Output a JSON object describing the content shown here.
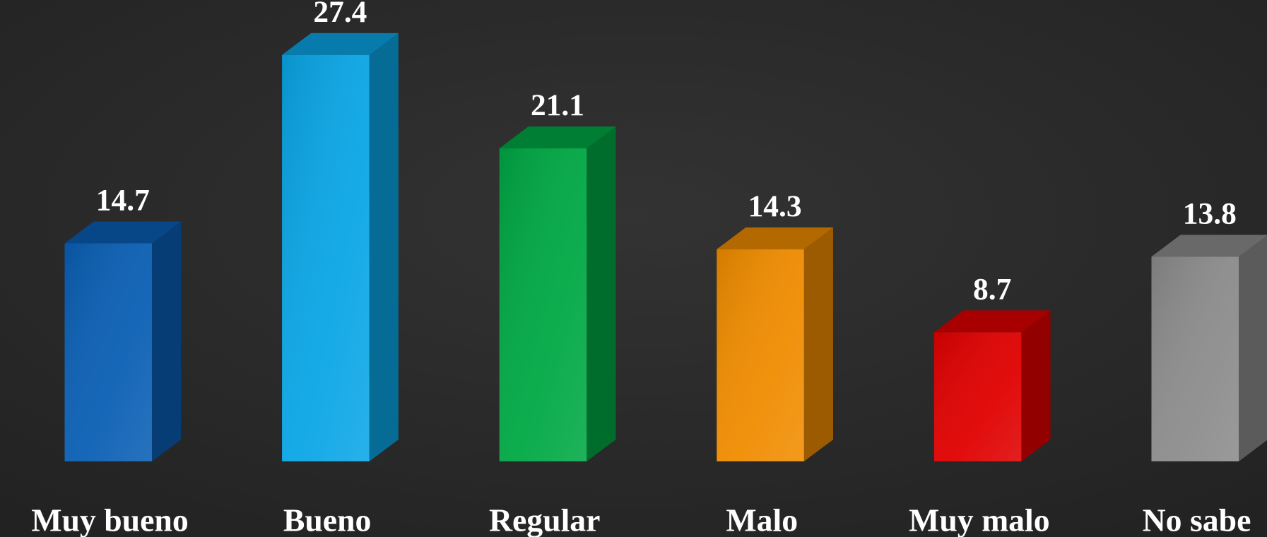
{
  "chart_data": {
    "type": "bar3d",
    "categories": [
      "Muy bueno",
      "Bueno",
      "Regular",
      "Malo",
      "Muy malo",
      "No sabe"
    ],
    "values": [
      14.7,
      27.4,
      21.1,
      14.3,
      8.7,
      13.8
    ],
    "colors": [
      "#0a5fb4",
      "#0aa6e6",
      "#00a844",
      "#f08c00",
      "#e00000",
      "#8c8c8c"
    ]
  }
}
